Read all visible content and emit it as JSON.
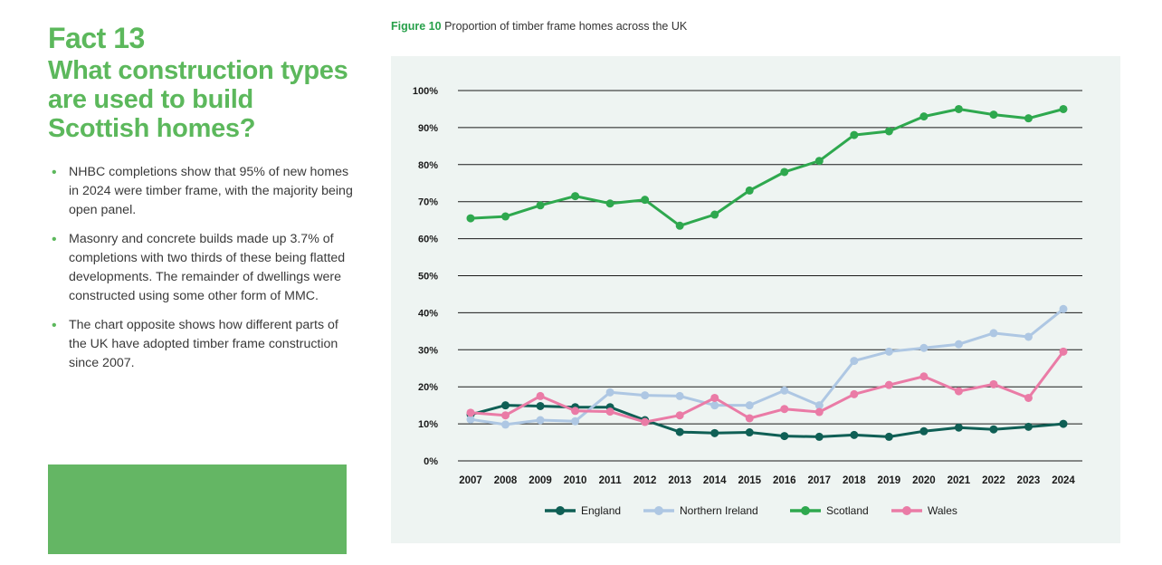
{
  "fact": {
    "number": "Fact 13",
    "title": "What construction types are used to build Scottish homes?",
    "bullets": [
      "NHBC completions show that 95% of new homes in 2024 were timber frame, with the majority being open panel.",
      "Masonry and concrete builds made up 3.7% of completions with two thirds of these being flatted developments. The remainder of dwellings were constructed using some other form of MMC.",
      "The chart opposite shows how different parts of the UK have adopted timber frame construction since 2007."
    ]
  },
  "figure": {
    "label": "Figure 10",
    "title": "Proportion of timber frame homes across the UK"
  },
  "chart_data": {
    "type": "line",
    "title": "Proportion of timber frame homes across the UK",
    "xlabel": "",
    "ylabel": "",
    "ylim": [
      0,
      100
    ],
    "yticks": [
      "0%",
      "10%",
      "20%",
      "30%",
      "40%",
      "50%",
      "60%",
      "70%",
      "80%",
      "90%",
      "100%"
    ],
    "grid": true,
    "legend_position": "bottom-center",
    "x": [
      "2007",
      "2008",
      "2009",
      "2010",
      "2011",
      "2012",
      "2013",
      "2014",
      "2015",
      "2016",
      "2017",
      "2018",
      "2019",
      "2020",
      "2021",
      "2022",
      "2023",
      "2024"
    ],
    "series": [
      {
        "name": "England",
        "color": "#0f5f55",
        "values": [
          12.5,
          15,
          14.8,
          14.5,
          14.5,
          11,
          7.8,
          7.5,
          7.7,
          6.7,
          6.5,
          7,
          6.5,
          8,
          9,
          8.5,
          9.2,
          10
        ]
      },
      {
        "name": "Northern Ireland",
        "color": "#aec7e3",
        "values": [
          11.2,
          9.8,
          11,
          10.7,
          18.5,
          17.7,
          17.5,
          15,
          15,
          19,
          15,
          27,
          29.5,
          30.5,
          31.5,
          34.5,
          33.5,
          41
        ]
      },
      {
        "name": "Scotland",
        "color": "#2ea84e",
        "values": [
          65.5,
          66,
          69,
          71.5,
          69.5,
          70.5,
          63.5,
          66.5,
          73,
          78,
          81,
          88,
          89,
          93,
          95,
          93.5,
          92.5,
          95
        ]
      },
      {
        "name": "Wales",
        "color": "#ea7ba6",
        "values": [
          13,
          12.3,
          17.5,
          13.5,
          13.3,
          10.5,
          12.3,
          17,
          11.5,
          14,
          13.2,
          18,
          20.5,
          22.8,
          18.8,
          20.7,
          17,
          29.5
        ]
      }
    ]
  }
}
